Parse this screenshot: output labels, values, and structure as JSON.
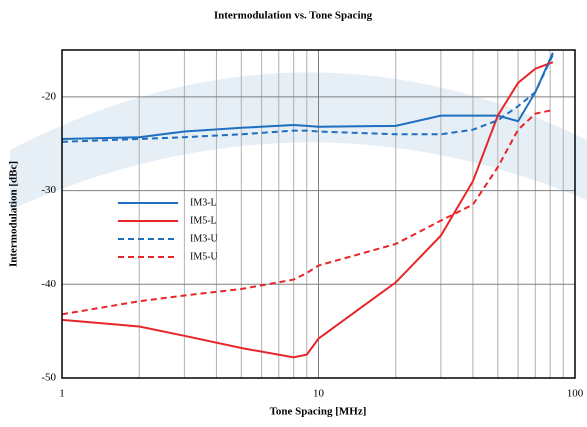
{
  "chart_data": {
    "type": "line",
    "title": "Intermodulation vs. Tone Spacing",
    "xlabel": "Tone Spacing [MHz]",
    "ylabel": "Intermodulation [dBc]",
    "xscale": "log",
    "grid": true,
    "xlim": [
      1,
      100
    ],
    "xticks": [
      1,
      10,
      100
    ],
    "xminorticks": [
      2,
      3,
      4,
      5,
      6,
      7,
      8,
      9,
      20,
      30,
      40,
      50,
      60,
      70,
      80,
      90
    ],
    "ylim": [
      -50,
      -15
    ],
    "yticks": [
      -50,
      -40,
      -30,
      -20
    ],
    "legend": "center-left",
    "x": [
      1,
      2,
      3,
      5,
      8,
      9,
      10,
      20,
      30,
      40,
      50,
      60,
      70,
      82
    ],
    "series": [
      {
        "name": "IM3-L",
        "color": "#1f6fbf",
        "dash": false,
        "values": [
          -24.5,
          -24.3,
          -23.7,
          -23.3,
          -23.0,
          -23.1,
          -23.2,
          -23.1,
          -22.0,
          -22.0,
          -22.0,
          -22.6,
          -19.5,
          -15.3
        ]
      },
      {
        "name": "IM5-L",
        "color": "#e8262a",
        "dash": false,
        "values": [
          -43.8,
          -44.5,
          -45.5,
          -46.8,
          -47.8,
          -47.5,
          -45.8,
          -39.8,
          -34.8,
          -29.0,
          -22.0,
          -18.5,
          -17.0,
          -16.3
        ]
      },
      {
        "name": "IM3-U",
        "color": "#1f6fbf",
        "dash": true,
        "values": [
          -24.8,
          -24.5,
          -24.3,
          -24.0,
          -23.6,
          -23.6,
          -23.7,
          -24.0,
          -24.0,
          -23.5,
          -22.5,
          -21.0,
          -19.5,
          -15.5
        ]
      },
      {
        "name": "IM5-U",
        "color": "#e8262a",
        "dash": true,
        "values": [
          -43.2,
          -41.8,
          -41.2,
          -40.5,
          -39.5,
          -38.8,
          -38.0,
          -35.7,
          -33.2,
          -31.5,
          -27.5,
          -23.5,
          -21.8,
          -21.4
        ]
      }
    ]
  }
}
